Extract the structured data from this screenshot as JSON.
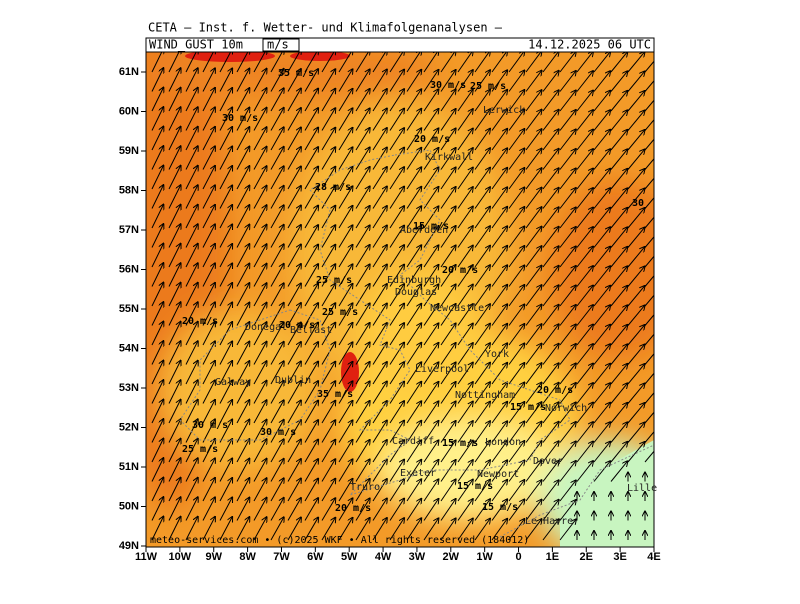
{
  "header": {
    "institute": "CETA — Inst. f. Wetter- und Klimafolgenanalysen —",
    "field": "WIND_GUST 10m",
    "unit": "m/s",
    "valid_time": "14.12.2025 06 UTC"
  },
  "axes": {
    "lat_labels": [
      "61N",
      "60N",
      "59N",
      "58N",
      "57N",
      "56N",
      "55N",
      "54N",
      "53N",
      "52N",
      "51N",
      "50N",
      "49N"
    ],
    "lon_labels": [
      "11W",
      "10W",
      "9W",
      "8W",
      "7W",
      "6W",
      "5W",
      "4W",
      "3W",
      "2W",
      "1W",
      "0",
      "1E",
      "2E",
      "3E",
      "4E"
    ]
  },
  "places": [
    "Lerwick",
    "Kirkwall",
    "Aberdeen",
    "Edinburgh",
    "Douglas",
    "Newcastle",
    "Donegal",
    "Belfast",
    "York",
    "Liverpool",
    "Galway",
    "Dublin",
    "Nottingham",
    "Norwich",
    "Cardiff",
    "London",
    "Dover",
    "Exeter",
    "Newport",
    "Lille",
    "Truro",
    "Le Havre"
  ],
  "contour_labels": [
    "35 m/s",
    "30 m/s",
    "25 m/s",
    "30 m/s",
    "20 m/s",
    "28 m/s",
    "30",
    "15 m/s",
    "20 m/s",
    "25 m/s",
    "20 m/s",
    "25 m/s",
    "20 m/s",
    "20 m/s",
    "15 m/s",
    "35 m/s",
    "30 m/s",
    "30 m/s",
    "15 m/s",
    "25 m/s",
    "15 m/s",
    "20 m/s",
    "15 m/s"
  ],
  "footer": "meteo-services.com • (c)2025 WKF • All rights reserved (184012)"
}
